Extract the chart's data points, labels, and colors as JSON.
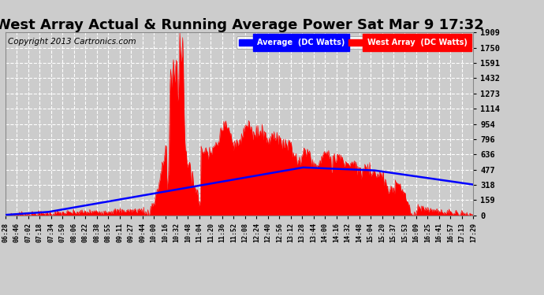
{
  "title": "West Array Actual & Running Average Power Sat Mar 9 17:32",
  "copyright": "Copyright 2013 Cartronics.com",
  "ylabel_right_ticks": [
    0.0,
    159.1,
    318.2,
    477.3,
    636.4,
    795.5,
    954.5,
    1113.6,
    1272.7,
    1431.8,
    1590.9,
    1750.0,
    1909.1
  ],
  "ymax": 1909.1,
  "ymin": 0.0,
  "bg_color": "#cccccc",
  "plot_bg_color": "#cccccc",
  "bar_color": "#ff0000",
  "avg_color": "#0000ff",
  "legend_avg_label": "Average  (DC Watts)",
  "legend_west_label": "West Array  (DC Watts)",
  "title_fontsize": 13,
  "copyright_fontsize": 7.5,
  "xtick_labels": [
    "06:28",
    "06:46",
    "07:02",
    "07:18",
    "07:34",
    "07:50",
    "08:06",
    "08:22",
    "08:38",
    "08:55",
    "09:11",
    "09:27",
    "09:44",
    "10:00",
    "10:16",
    "10:32",
    "10:48",
    "11:04",
    "11:20",
    "11:36",
    "11:52",
    "12:08",
    "12:24",
    "12:40",
    "12:56",
    "13:12",
    "13:28",
    "13:44",
    "14:00",
    "14:16",
    "14:32",
    "14:48",
    "15:04",
    "15:20",
    "15:37",
    "15:53",
    "16:09",
    "16:25",
    "16:41",
    "16:57",
    "17:13",
    "17:29"
  ],
  "grid_color": "#aaaaaa",
  "spine_color": "#888888"
}
